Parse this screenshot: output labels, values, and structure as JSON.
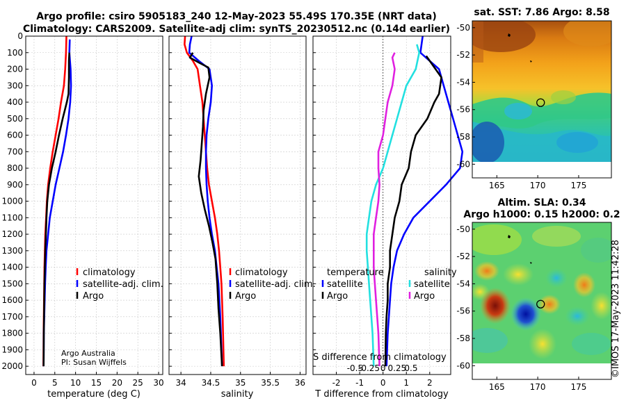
{
  "title_line1": "Argo profile: csiro 5905183_240 12-May-2023 55.49S 170.35E (NRT data)",
  "title_line2": "Climatology: CARS2009. Satellite-adj clim: synTS_20230512.nc (0.14d earlier)",
  "credit_line1": "Argo Australia",
  "credit_line2": "PI: Susan Wijffels",
  "timestamp": "©IMOS 17-May-2023 11:42:28",
  "colors": {
    "climatology": "#ff0000",
    "satellite": "#0000ff",
    "argo": "#000000",
    "sat_salinity": "#22e0e0",
    "argo_salinity": "#e020e0"
  },
  "chart_data": [
    {
      "type": "line",
      "id": "temperature",
      "xlabel": "temperature (deg C)",
      "ylabel": "",
      "xlim": [
        -2,
        31
      ],
      "ylim": [
        2050,
        0
      ],
      "xticks": [
        0,
        5,
        10,
        15,
        20,
        25,
        30
      ],
      "yticks": [
        0,
        100,
        200,
        300,
        400,
        500,
        600,
        700,
        800,
        900,
        1000,
        1100,
        1200,
        1300,
        1400,
        1500,
        1600,
        1700,
        1800,
        1900,
        2000
      ],
      "legend": [
        "climatology",
        "satellite-adj. clim.",
        "Argo"
      ],
      "series": [
        {
          "name": "climatology",
          "color": "#ff0000",
          "x": [
            7.8,
            7.7,
            7.5,
            7.2,
            6.5,
            5.9,
            5.2,
            4.5,
            3.9,
            3.4,
            3.1,
            2.9,
            2.7,
            2.6,
            2.5,
            2.45,
            2.4,
            2.35,
            2.3,
            2.25
          ],
          "y": [
            0,
            100,
            200,
            300,
            400,
            500,
            600,
            700,
            800,
            900,
            1000,
            1100,
            1200,
            1300,
            1400,
            1500,
            1600,
            1700,
            1800,
            2000
          ]
        },
        {
          "name": "satellite-adj. clim.",
          "color": "#0000ff",
          "x": [
            8.6,
            8.5,
            8.8,
            8.9,
            8.7,
            8.3,
            7.7,
            7.0,
            6.1,
            5.2,
            4.5,
            3.8,
            3.4,
            3.0,
            2.8,
            2.65,
            2.55,
            2.45,
            2.35,
            2.3
          ],
          "y": [
            20,
            100,
            200,
            300,
            400,
            500,
            600,
            700,
            800,
            900,
            1000,
            1100,
            1200,
            1300,
            1400,
            1500,
            1600,
            1700,
            1800,
            2000
          ]
        },
        {
          "name": "Argo",
          "color": "#000000",
          "x": [
            8.5,
            8.4,
            8.4,
            8.3,
            7.9,
            6.9,
            6.0,
            5.2,
            4.3,
            3.6,
            3.2,
            3.0,
            2.85,
            2.7,
            2.6,
            2.5,
            2.45,
            2.4,
            2.35,
            2.3
          ],
          "y": [
            100,
            150,
            250,
            350,
            400,
            500,
            600,
            700,
            800,
            900,
            1000,
            1100,
            1200,
            1300,
            1400,
            1500,
            1600,
            1700,
            1800,
            2000
          ]
        }
      ]
    },
    {
      "type": "line",
      "id": "salinity",
      "xlabel": "salinity",
      "ylabel": "",
      "xlim": [
        33.8,
        36.1
      ],
      "ylim": [
        2050,
        0
      ],
      "xticks": [
        34,
        34.5,
        35,
        35.5,
        36
      ],
      "legend": [
        "climatology",
        "satellite-adj. clim.",
        "Argo"
      ],
      "series": [
        {
          "name": "climatology",
          "color": "#ff0000",
          "x": [
            34.07,
            34.06,
            34.1,
            34.2,
            34.28,
            34.32,
            34.36,
            34.38,
            34.4,
            34.42,
            34.44,
            34.47,
            34.52,
            34.57,
            34.61,
            34.64,
            34.66,
            34.68,
            34.7,
            34.72
          ],
          "y": [
            0,
            50,
            100,
            150,
            200,
            300,
            400,
            500,
            600,
            700,
            800,
            900,
            1000,
            1100,
            1200,
            1300,
            1400,
            1500,
            1700,
            2000
          ]
        },
        {
          "name": "satellite-adj. clim.",
          "color": "#0000ff",
          "x": [
            34.18,
            34.15,
            34.14,
            34.3,
            34.48,
            34.52,
            34.5,
            34.46,
            34.43,
            34.42,
            34.42,
            34.43,
            34.45,
            34.48,
            34.52,
            34.57,
            34.6,
            34.63,
            34.66,
            34.69
          ],
          "y": [
            0,
            50,
            100,
            150,
            200,
            300,
            400,
            500,
            600,
            700,
            800,
            900,
            1000,
            1100,
            1200,
            1300,
            1400,
            1500,
            1700,
            2000
          ]
        },
        {
          "name": "Argo",
          "color": "#000000",
          "x": [
            34.2,
            34.15,
            34.3,
            34.46,
            34.48,
            34.42,
            34.38,
            34.37,
            34.35,
            34.33,
            34.3,
            34.34,
            34.4,
            34.47,
            34.53,
            34.58,
            34.61,
            34.63,
            34.66,
            34.69
          ],
          "y": [
            100,
            130,
            160,
            190,
            250,
            350,
            450,
            550,
            650,
            750,
            850,
            950,
            1050,
            1150,
            1250,
            1350,
            1500,
            1650,
            1800,
            2000
          ]
        }
      ]
    },
    {
      "type": "line",
      "id": "difference",
      "xlabel": "T difference from climatology",
      "xlabel_top": "S difference from climatology",
      "xlim": [
        -3,
        2.9
      ],
      "ylim": [
        2050,
        0
      ],
      "xticks": [
        -2,
        -1,
        0,
        1,
        2
      ],
      "xticks_secondary": [
        "-0.5",
        "-0.25",
        "0",
        "0.25",
        "0.5"
      ],
      "legend_temperature_title": "temperature",
      "legend_salinity_title": "salinity",
      "legend_temperature": [
        "satellite",
        "Argo"
      ],
      "legend_salinity": [
        "satellite",
        "Argo"
      ],
      "series": [
        {
          "name": "temperature satellite",
          "color": "#0000ff",
          "x": [
            1.7,
            1.6,
            2.4,
            2.6,
            2.8,
            3.0,
            3.2,
            3.4,
            3.3,
            2.7,
            2.0,
            1.3,
            0.9,
            0.6,
            0.45,
            0.35,
            0.3,
            0.25,
            0.2,
            0.15
          ],
          "y": [
            0,
            100,
            200,
            300,
            400,
            500,
            600,
            700,
            800,
            900,
            1000,
            1100,
            1200,
            1300,
            1400,
            1500,
            1600,
            1700,
            1800,
            2000
          ]
        },
        {
          "name": "temperature Argo",
          "color": "#000000",
          "x": [
            1.85,
            2.0,
            2.5,
            2.4,
            2.2,
            1.9,
            1.4,
            1.2,
            1.1,
            0.8,
            0.7,
            0.5,
            0.4,
            0.3,
            0.3,
            0.2,
            0.2,
            0.15,
            0.12,
            0.1
          ],
          "y": [
            120,
            150,
            250,
            350,
            400,
            500,
            600,
            700,
            800,
            900,
            1000,
            1100,
            1200,
            1300,
            1400,
            1500,
            1600,
            1700,
            1800,
            2000
          ]
        },
        {
          "name": "salinity satellite",
          "color": "#22e0e0",
          "x": [
            1.45,
            1.55,
            1.4,
            1.0,
            0.8,
            0.6,
            0.4,
            0.2,
            0.0,
            -0.3,
            -0.5,
            -0.6,
            -0.7,
            -0.7,
            -0.65,
            -0.6,
            -0.55,
            -0.5,
            -0.45,
            -0.4
          ],
          "y": [
            50,
            100,
            200,
            300,
            400,
            500,
            600,
            700,
            800,
            900,
            1000,
            1100,
            1200,
            1300,
            1400,
            1500,
            1600,
            1700,
            1800,
            2000
          ]
        },
        {
          "name": "salinity Argo",
          "color": "#e020e0",
          "x": [
            0.5,
            0.4,
            0.5,
            0.4,
            0.2,
            0.1,
            0.0,
            -0.2,
            -0.2,
            -0.15,
            -0.2,
            -0.3,
            -0.4,
            -0.4,
            -0.4,
            -0.35,
            -0.3,
            -0.25,
            -0.2,
            -0.15
          ],
          "y": [
            100,
            130,
            200,
            300,
            400,
            500,
            600,
            700,
            800,
            900,
            1000,
            1100,
            1200,
            1300,
            1400,
            1500,
            1600,
            1700,
            1800,
            2000
          ]
        }
      ]
    },
    {
      "type": "heatmap",
      "id": "sst_map",
      "title": "sat. SST: 7.86 Argo: 8.58",
      "xticks": [
        165,
        170,
        175
      ],
      "yticks": [
        -50,
        -52,
        -54,
        -56,
        -58,
        -60
      ],
      "xlim": [
        162,
        179
      ],
      "ylim": [
        -61,
        -49.5
      ],
      "argo_position": [
        170.35,
        -55.49
      ]
    },
    {
      "type": "heatmap",
      "id": "sla_map",
      "title_line1": "Altim. SLA: 0.34",
      "title_line2": "Argo h1000: 0.15 h2000: 0.2",
      "xticks": [
        165,
        170,
        175
      ],
      "yticks": [
        -50,
        -52,
        -54,
        -56,
        -58,
        -60
      ],
      "xlim": [
        162,
        179
      ],
      "ylim": [
        -61,
        -49.5
      ],
      "argo_position": [
        170.35,
        -55.49
      ]
    }
  ]
}
